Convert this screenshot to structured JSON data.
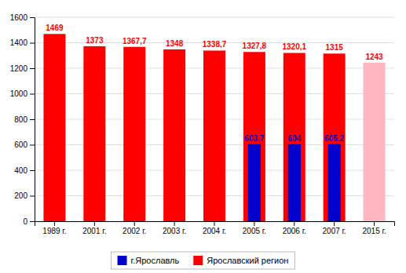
{
  "chart_data": {
    "type": "bar",
    "categories": [
      "1989 г.",
      "2001 г.",
      "2002 г.",
      "2003 г.",
      "2004 г.",
      "2005 г.",
      "2006 г.",
      "2007 г.",
      "2015 г."
    ],
    "series": [
      {
        "name": "г.Ярославль",
        "color": "#0000CC",
        "values": [
          null,
          null,
          null,
          null,
          null,
          603.7,
          604,
          605.2,
          null
        ],
        "value_labels": [
          null,
          null,
          null,
          null,
          null,
          "603,7",
          "604",
          "605,2",
          null
        ]
      },
      {
        "name": "Ярославский регион",
        "color": "#FF0000",
        "colors": [
          "#FF0000",
          "#FF0000",
          "#FF0000",
          "#FF0000",
          "#FF0000",
          "#FF0000",
          "#FF0000",
          "#FF0000",
          "#FFB6C1"
        ],
        "values": [
          1469,
          1373,
          1367.7,
          1348,
          1338.7,
          1327.8,
          1320.1,
          1315,
          1243
        ],
        "value_labels": [
          "1469",
          "1373",
          "1367,7",
          "1348",
          "1338,7",
          "1327,8",
          "1320,1",
          "1315",
          "1243"
        ]
      }
    ],
    "ylim": [
      0,
      1600
    ],
    "yticks": [
      0,
      200,
      400,
      600,
      800,
      1000,
      1200,
      1400,
      1600
    ],
    "grid": true,
    "legend": "bottom",
    "data_labels": true
  }
}
